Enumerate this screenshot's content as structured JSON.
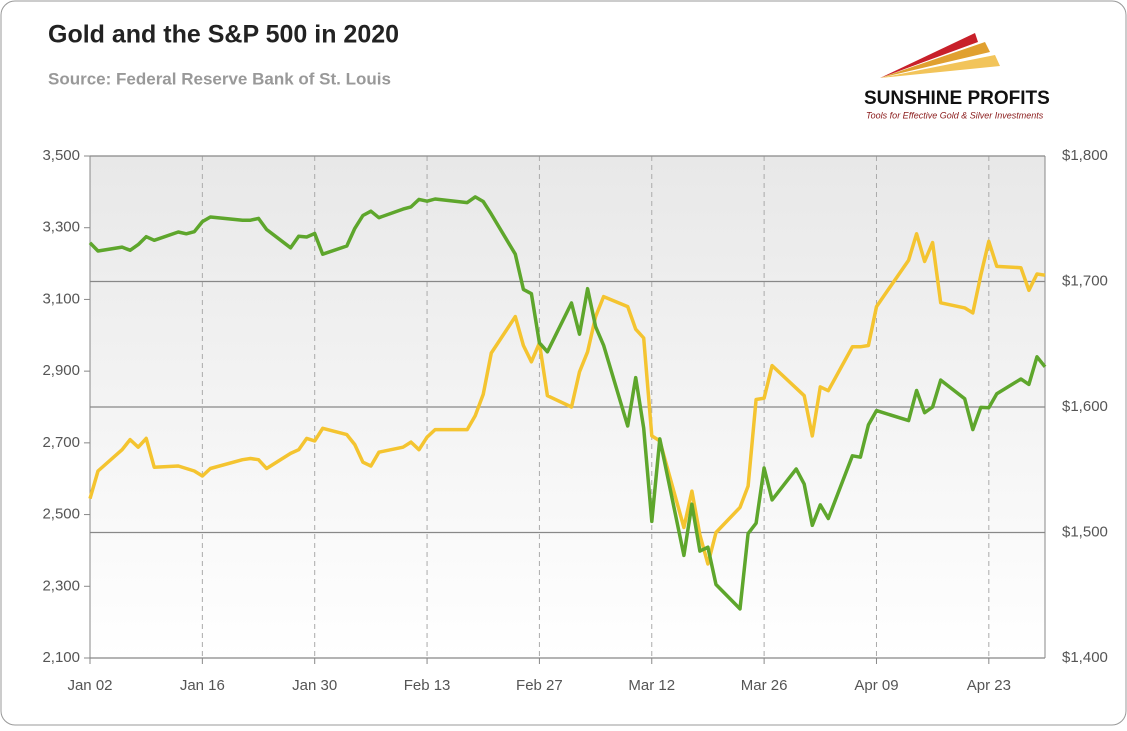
{
  "chart_data": {
    "type": "line",
    "title": "Gold and the S&P 500 in 2020",
    "subtitle": "Source: Federal Reserve Bank of St. Louis",
    "x": [
      "Jan 02",
      "Jan 03",
      "Jan 06",
      "Jan 07",
      "Jan 08",
      "Jan 09",
      "Jan 10",
      "Jan 13",
      "Jan 14",
      "Jan 15",
      "Jan 16",
      "Jan 17",
      "Jan 21",
      "Jan 22",
      "Jan 23",
      "Jan 24",
      "Jan 27",
      "Jan 28",
      "Jan 29",
      "Jan 30",
      "Jan 31",
      "Feb 03",
      "Feb 04",
      "Feb 05",
      "Feb 06",
      "Feb 07",
      "Feb 10",
      "Feb 11",
      "Feb 12",
      "Feb 13",
      "Feb 14",
      "Feb 18",
      "Feb 19",
      "Feb 20",
      "Feb 21",
      "Feb 24",
      "Feb 25",
      "Feb 26",
      "Feb 27",
      "Feb 28",
      "Mar 02",
      "Mar 03",
      "Mar 04",
      "Mar 05",
      "Mar 06",
      "Mar 09",
      "Mar 10",
      "Mar 11",
      "Mar 12",
      "Mar 13",
      "Mar 16",
      "Mar 17",
      "Mar 18",
      "Mar 19",
      "Mar 20",
      "Mar 23",
      "Mar 24",
      "Mar 25",
      "Mar 26",
      "Mar 27",
      "Mar 30",
      "Mar 31",
      "Apr 01",
      "Apr 02",
      "Apr 03",
      "Apr 06",
      "Apr 07",
      "Apr 08",
      "Apr 09",
      "Apr 13",
      "Apr 14",
      "Apr 15",
      "Apr 16",
      "Apr 17",
      "Apr 20",
      "Apr 21",
      "Apr 22",
      "Apr 23",
      "Apr 24",
      "Apr 27",
      "Apr 28",
      "Apr 29",
      "Apr 30"
    ],
    "series": [
      {
        "color": "#5ea62c",
        "axis": "y",
        "values": [
          3258,
          3235,
          3246,
          3237,
          3253,
          3275,
          3265,
          3288,
          3283,
          3289,
          3317,
          3330,
          3321,
          3321,
          3326,
          3295,
          3244,
          3276,
          3274,
          3284,
          3226,
          3249,
          3298,
          3334,
          3346,
          3328,
          3352,
          3358,
          3379,
          3374,
          3380,
          3370,
          3386,
          3373,
          3338,
          3226,
          3128,
          3116,
          2979,
          2954,
          3090,
          3003,
          3130,
          3024,
          2972,
          2747,
          2882,
          2741,
          2481,
          2711,
          2386,
          2529,
          2398,
          2409,
          2305,
          2237,
          2447,
          2476,
          2630,
          2541,
          2627,
          2585,
          2470,
          2527,
          2489,
          2664,
          2660,
          2750,
          2790,
          2762,
          2846,
          2784,
          2800,
          2875,
          2823,
          2737,
          2799,
          2798,
          2837,
          2878,
          2863,
          2940,
          2912
        ]
      },
      {
        "color": "#f4c430",
        "axis": "y2",
        "values": [
          1527,
          1549,
          1566,
          1574,
          1568,
          1575,
          1552,
          1553,
          1551,
          1549,
          1545,
          1551,
          1558,
          1559,
          1558,
          1551,
          1563,
          1566,
          1575,
          1573,
          1583,
          1578,
          1570,
          1556,
          1553,
          1564,
          1568,
          1572,
          1566,
          1576,
          1582,
          1582,
          1593,
          1610,
          1643,
          1672,
          1649,
          1636,
          1651,
          1609,
          1600,
          1628,
          1644,
          1672,
          1688,
          1680,
          1662,
          1655,
          1577,
          1573,
          1504,
          1533,
          1498,
          1475,
          1500,
          1520,
          1537,
          1606,
          1607,
          1633,
          1615,
          1609,
          1577,
          1616,
          1613,
          1648,
          1648,
          1649,
          1680,
          1717,
          1738,
          1716,
          1731,
          1683,
          1679,
          1675,
          1705,
          1732,
          1712,
          1711,
          1693,
          1706,
          1705
        ]
      }
    ],
    "xlim": [
      "Jan 02",
      "Apr 30"
    ],
    "xticks": [
      "Jan 02",
      "Jan 16",
      "Jan 30",
      "Feb 13",
      "Feb 27",
      "Mar 12",
      "Mar 26",
      "Apr 09",
      "Apr 23"
    ],
    "ylim": [
      2100,
      3500
    ],
    "yticks": [
      {
        "value": 2100,
        "label": "2,100"
      },
      {
        "value": 2300,
        "label": "2,300"
      },
      {
        "value": 2500,
        "label": "2,500"
      },
      {
        "value": 2700,
        "label": "2,700"
      },
      {
        "value": 2900,
        "label": "2,900"
      },
      {
        "value": 3100,
        "label": "3,100"
      },
      {
        "value": 3300,
        "label": "3,300"
      },
      {
        "value": 3500,
        "label": "3,500"
      }
    ],
    "y2lim": [
      1400,
      1800
    ],
    "y2ticks": [
      {
        "value": 1400,
        "label": "$1,400"
      },
      {
        "value": 1500,
        "label": "$1,500"
      },
      {
        "value": 1600,
        "label": "$1,600"
      },
      {
        "value": 1700,
        "label": "$1,700"
      },
      {
        "value": 1800,
        "label": "$1,800"
      }
    ],
    "grid": true
  },
  "logo": {
    "name": "SUNSHINE PROFITS",
    "tagline": "Tools for Effective Gold & Silver Investments"
  }
}
